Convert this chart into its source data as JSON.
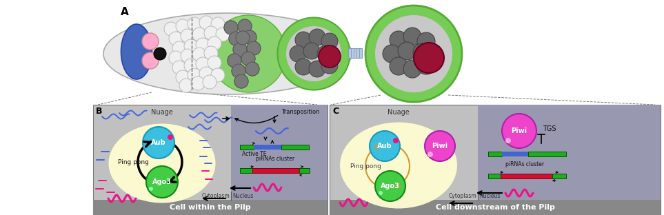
{
  "fig_width": 9.63,
  "fig_height": 3.12,
  "dpi": 100,
  "title_A": "A",
  "panel_B_label": "B",
  "panel_C_label": "C",
  "label_nuage_B": "Nuage",
  "label_nuage_C": "Nuage",
  "label_Aub_B": "Aub",
  "label_Ago3_B": "Ago3",
  "label_Aub_C": "Aub",
  "label_Ago3_C": "Ago3",
  "label_pingpong_B": "Ping pong",
  "label_pingpong_C": "Ping pong",
  "label_Piwi_C": "Piwi",
  "label_Piwi_nucleus": "Piwi",
  "label_TGS": "TGS",
  "label_transposition": "Transposition",
  "label_activeTE": "Active TE",
  "label_piRNAs_cluster_B": "piRNAs cluster",
  "label_piRNAs_cluster_C": "piRNAs cluster",
  "label_cytoplasm_B": "Cytoplasm",
  "label_nucleus_B": "Nucleus",
  "label_cytoplasm_C": "Cytoplasm",
  "label_nucleus_C": "Nucleus",
  "label_cell_B": "Cell within the Pilp",
  "label_cell_C": "Cell downstream of the Pilp",
  "color_white": "#ffffff",
  "color_black": "#000000",
  "color_Aub": "#3bbfdf",
  "color_Ago3": "#44cc44",
  "color_Piwi_pink": "#ee44cc",
  "color_piRNA_blue": "#4466dd",
  "color_piRNA_pink": "#ee1188",
  "color_green_bar": "#22aa22",
  "color_blue_bar_te": "#4466cc",
  "color_red_bar": "#cc1133",
  "color_panel_bg": "#c0c0c0",
  "color_nucleus_bg": "#9898b0",
  "color_nuage_yellow": "#fffdd0",
  "color_footer_bg": "#888888",
  "color_green_ring": "#77cc55",
  "color_gray_nurse": "#6a6a6a",
  "color_dark_red": "#991133",
  "color_blue_niche": "#4466bb",
  "color_pink_stem": "#ffaacc",
  "color_light_gray_cell": "#d8d8d8",
  "color_mid_gray_cell": "#b0b0b0"
}
